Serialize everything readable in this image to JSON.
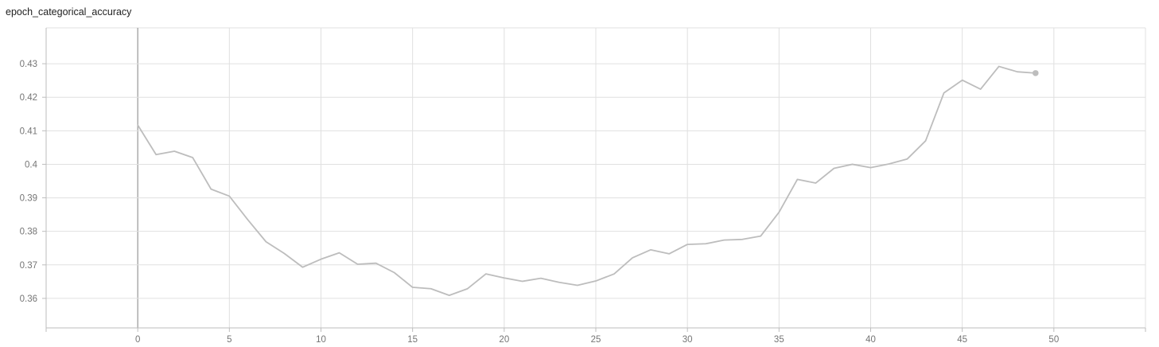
{
  "chart_data": {
    "type": "line",
    "title": "epoch_categorical_accuracy",
    "xlabel": "",
    "ylabel": "",
    "xlim": [
      -5,
      55
    ],
    "ylim": [
      0.3512,
      0.4407
    ],
    "x_ticks": [
      0,
      5,
      10,
      15,
      20,
      25,
      30,
      35,
      40,
      45,
      50
    ],
    "y_ticks": [
      0.36,
      0.37,
      0.38,
      0.39,
      0.4,
      0.41,
      0.42,
      0.43
    ],
    "x_tick_labels": [
      "0",
      "5",
      "10",
      "15",
      "20",
      "25",
      "30",
      "35",
      "40",
      "45",
      "50"
    ],
    "y_tick_labels": [
      "0.36",
      "0.37",
      "0.38",
      "0.39",
      "0.4",
      "0.41",
      "0.42",
      "0.43"
    ],
    "grid": true,
    "legend": "none",
    "series": [
      {
        "color": "#bdbdbd",
        "x": [
          0,
          1,
          2,
          3,
          4,
          5,
          6,
          7,
          8,
          9,
          10,
          11,
          12,
          13,
          14,
          15,
          16,
          17,
          18,
          19,
          20,
          21,
          22,
          23,
          24,
          25,
          26,
          27,
          28,
          29,
          30,
          31,
          32,
          33,
          34,
          35,
          36,
          37,
          38,
          39,
          40,
          41,
          42,
          43,
          44,
          45,
          46,
          47,
          48,
          49
        ],
        "values": [
          0.4117,
          0.4029,
          0.4039,
          0.402,
          0.3926,
          0.3905,
          0.3835,
          0.3769,
          0.3734,
          0.3693,
          0.3717,
          0.3736,
          0.3702,
          0.3705,
          0.3677,
          0.3633,
          0.3629,
          0.3609,
          0.3629,
          0.3673,
          0.3661,
          0.3651,
          0.366,
          0.3648,
          0.3639,
          0.3652,
          0.3673,
          0.3721,
          0.3745,
          0.3733,
          0.3761,
          0.3763,
          0.3774,
          0.3776,
          0.3786,
          0.3857,
          0.3955,
          0.3944,
          0.3988,
          0.4,
          0.399,
          0.4001,
          0.4016,
          0.407,
          0.4213,
          0.4251,
          0.4224,
          0.4292,
          0.4276,
          0.4272
        ]
      }
    ]
  },
  "colors": {
    "line": "#bdbdbd",
    "grid": "#e0e0e0",
    "axis": "#bdbdbd",
    "y_zero_line": "#9e9e9e",
    "tick_text": "#757575",
    "title_text": "#212121"
  }
}
